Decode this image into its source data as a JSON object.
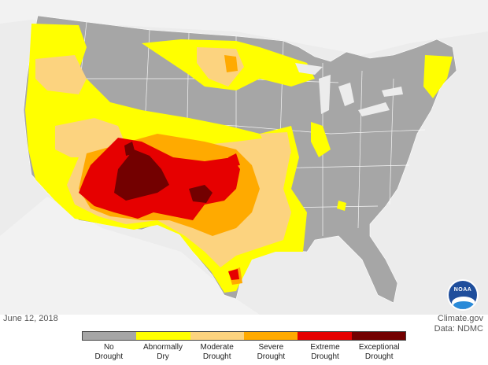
{
  "map": {
    "region": "Contiguous United States",
    "date": "June 12, 2018",
    "credit_line1": "Climate.gov",
    "credit_line2": "Data: NDMC",
    "logo_text": "NOAA",
    "background_color": "#ececec",
    "land_color": "#a6a6a6"
  },
  "legend": {
    "categories": [
      {
        "label": "No\nDrought",
        "color": "#a6a6a6"
      },
      {
        "label": "Abnormally\nDry",
        "color": "#ffff00"
      },
      {
        "label": "Moderate\nDrought",
        "color": "#fcd37f"
      },
      {
        "label": "Severe\nDrought",
        "color": "#ffaa00"
      },
      {
        "label": "Extreme\nDrought",
        "color": "#e60000"
      },
      {
        "label": "Exceptional\nDrought",
        "color": "#730000"
      }
    ]
  }
}
